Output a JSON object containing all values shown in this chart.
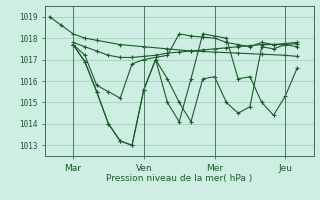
{
  "background_color": "#ceeee4",
  "grid_color": "#a0c8b8",
  "line_color": "#1a5c28",
  "xlabel_text": "Pression niveau de la mer( hPa )",
  "xtick_labels": [
    "Mar",
    "Ven",
    "Mer",
    "Jeu"
  ],
  "xtick_positions": [
    1,
    4,
    7,
    10
  ],
  "ytick_labels": [
    1013,
    1014,
    1015,
    1016,
    1017,
    1018,
    1019
  ],
  "ylim": [
    1012.5,
    1019.5
  ],
  "xlim": [
    -0.2,
    11.2
  ],
  "line1_x": [
    0.0,
    0.5,
    1.0,
    1.5,
    2.0,
    3.0,
    4.0,
    5.0,
    6.0,
    7.0,
    8.0,
    9.0,
    10.0,
    10.5
  ],
  "line1_y": [
    1019.0,
    1018.6,
    1018.2,
    1018.0,
    1017.9,
    1017.7,
    1017.6,
    1017.5,
    1017.4,
    1017.35,
    1017.3,
    1017.25,
    1017.2,
    1017.15
  ],
  "line2_x": [
    1.0,
    1.5,
    2.0,
    2.5,
    3.0,
    3.5,
    4.0,
    4.5,
    5.0,
    5.5,
    6.0,
    6.5,
    7.0,
    7.5,
    8.0,
    8.5,
    9.0,
    9.5,
    10.0,
    10.5
  ],
  "line2_y": [
    1017.8,
    1017.6,
    1017.4,
    1017.2,
    1017.1,
    1017.1,
    1017.15,
    1017.2,
    1017.3,
    1017.35,
    1017.4,
    1017.45,
    1017.5,
    1017.55,
    1017.6,
    1017.65,
    1017.7,
    1017.7,
    1017.75,
    1017.8
  ],
  "line3_x": [
    1.0,
    1.5,
    2.0,
    2.5,
    3.0,
    3.5,
    4.0,
    4.5,
    5.0,
    5.5,
    6.0,
    6.5,
    7.0,
    7.5,
    8.0,
    8.5,
    9.0,
    9.5,
    10.0,
    10.5
  ],
  "line3_y": [
    1017.7,
    1017.2,
    1015.8,
    1015.5,
    1015.2,
    1016.8,
    1017.0,
    1017.1,
    1017.2,
    1018.2,
    1018.1,
    1018.05,
    1018.0,
    1017.8,
    1017.7,
    1017.6,
    1017.8,
    1017.7,
    1017.7,
    1017.75
  ],
  "line4_x": [
    1.0,
    1.5,
    2.0,
    2.5,
    3.0,
    3.5,
    4.0,
    4.5,
    5.0,
    5.5,
    6.0,
    6.5,
    7.0,
    7.5,
    8.0,
    8.5,
    9.0,
    9.5,
    10.0,
    10.5
  ],
  "line4_y": [
    1017.7,
    1016.9,
    1015.5,
    1014.0,
    1013.2,
    1013.0,
    1015.6,
    1017.0,
    1016.1,
    1015.0,
    1014.1,
    1016.1,
    1016.2,
    1015.0,
    1014.5,
    1014.8,
    1017.6,
    1017.5,
    1017.7,
    1017.6
  ],
  "line5_x": [
    1.0,
    1.5,
    2.0,
    2.5,
    3.0,
    3.5,
    4.0,
    4.5,
    5.0,
    5.5,
    6.0,
    6.5,
    7.0,
    7.5,
    8.0,
    8.5,
    9.0,
    9.5,
    10.0,
    10.5
  ],
  "line5_y": [
    1017.7,
    1016.9,
    1015.5,
    1014.0,
    1013.2,
    1013.0,
    1015.6,
    1017.0,
    1015.0,
    1014.1,
    1016.1,
    1018.2,
    1018.1,
    1018.0,
    1016.1,
    1016.2,
    1015.0,
    1014.4,
    1015.3,
    1016.6
  ]
}
